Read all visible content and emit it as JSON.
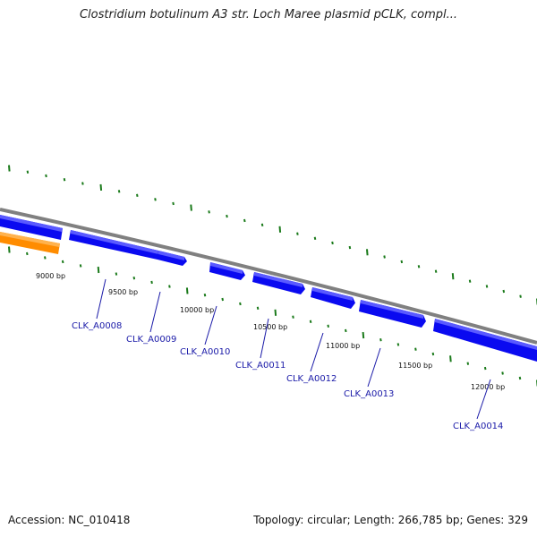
{
  "title": "Clostridium botulinum A3 str. Loch Maree plasmid pCLK, compl...",
  "footer": {
    "accession": "Accession: NC_010418",
    "summary": "Topology: circular; Length: 266,785 bp; Genes: 329"
  },
  "colors": {
    "backbone": "#808080",
    "gene_forward": "#0a0af0",
    "gene_forward_top": "#5a5aff",
    "feature_orange": "#ff8c00",
    "feature_orange_top": "#ffb24d",
    "tick": "#1a7a1a",
    "label_line": "#1a1aa8"
  },
  "scale_labels": [
    "9000 bp",
    "9500 bp",
    "10000 bp",
    "10500 bp",
    "11000 bp",
    "11500 bp",
    "12000 bp"
  ],
  "genes": [
    "CLK_A0008",
    "CLK_A0009",
    "CLK_A0010",
    "CLK_A0011",
    "CLK_A0012",
    "CLK_A0013",
    "CLK_A0014"
  ]
}
